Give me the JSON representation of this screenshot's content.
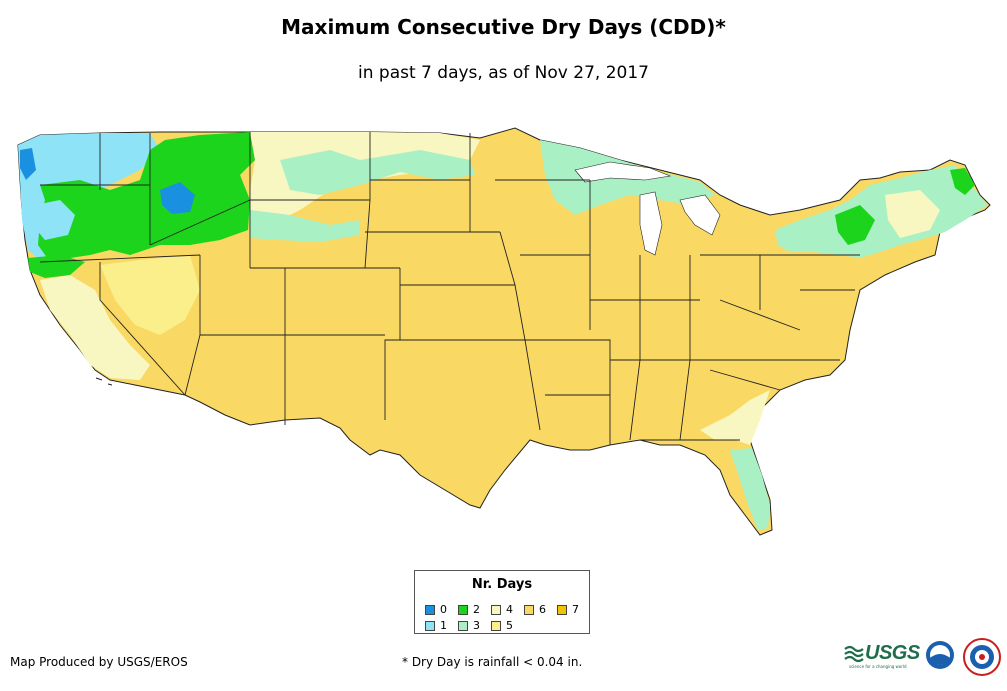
{
  "title": "Maximum Consecutive Dry Days (CDD)*",
  "subtitle": "in past 7 days, as of Nov 27, 2017",
  "legend": {
    "title": "Nr. Days",
    "items": [
      {
        "label": "0",
        "color": "#1a90e0"
      },
      {
        "label": "1",
        "color": "#8fe3f7"
      },
      {
        "label": "2",
        "color": "#1bd41b"
      },
      {
        "label": "3",
        "color": "#a9f0c5"
      },
      {
        "label": "4",
        "color": "#f9f7c1"
      },
      {
        "label": "5",
        "color": "#faef8a"
      },
      {
        "label": "6",
        "color": "#f9d864"
      },
      {
        "label": "7",
        "color": "#f5c200"
      }
    ]
  },
  "footer": {
    "producer": "Map Produced by USGS/EROS",
    "footnote": "* Dry Day is rainfall < 0.04 in."
  },
  "logos": {
    "usgs": "USGS",
    "usgs_tagline": "science for a changing world"
  },
  "colors": {
    "state_border": "#222222",
    "background": "#ffffff"
  }
}
